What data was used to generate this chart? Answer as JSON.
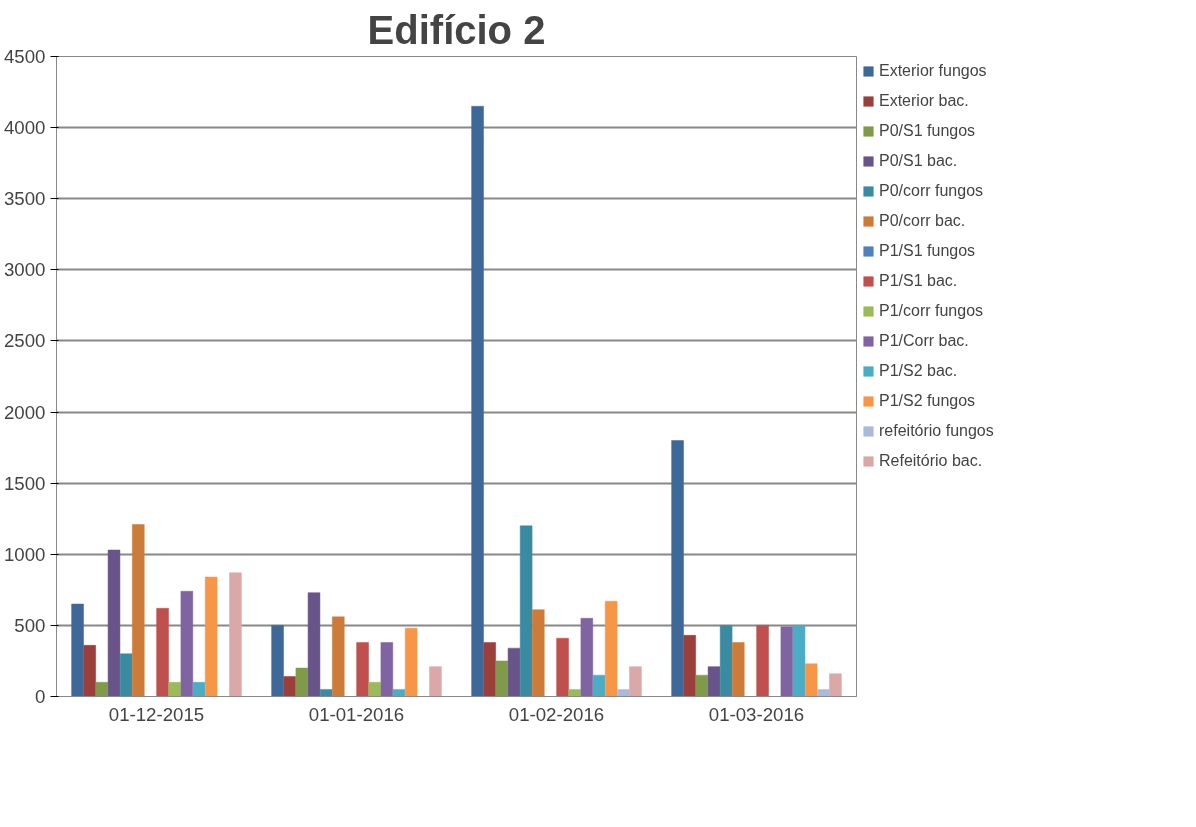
{
  "chart_data": {
    "type": "bar",
    "title": "Edifício 2",
    "categories": [
      "01-12-2015",
      "01-01-2016",
      "01-02-2016",
      "01-03-2016"
    ],
    "ylim": [
      0,
      4500
    ],
    "yticks": [
      0,
      500,
      1000,
      1500,
      2000,
      2500,
      3000,
      3500,
      4000,
      4500
    ],
    "grid": "y",
    "legend": "right",
    "series": [
      {
        "name": "Exterior fungos",
        "color": "#3e6898",
        "values": [
          650,
          500,
          4150,
          1800
        ]
      },
      {
        "name": "Exterior bac.",
        "color": "#9b3f3c",
        "values": [
          360,
          140,
          380,
          430
        ]
      },
      {
        "name": "P0/S1 fungos",
        "color": "#7f9a48",
        "values": [
          100,
          200,
          250,
          150
        ]
      },
      {
        "name": "P0/S1 bac.",
        "color": "#69548a",
        "values": [
          1030,
          730,
          340,
          210
        ]
      },
      {
        "name": "P0/corr fungos",
        "color": "#3a8ba1",
        "values": [
          300,
          50,
          1200,
          500
        ]
      },
      {
        "name": "P0/corr bac.",
        "color": "#cc7b38",
        "values": [
          1210,
          560,
          610,
          380
        ]
      },
      {
        "name": "P1/S1 fungos",
        "color": "#4f81bd",
        "values": [
          0,
          0,
          0,
          0
        ]
      },
      {
        "name": "P1/S1 bac.",
        "color": "#c0504d",
        "values": [
          620,
          380,
          410,
          500
        ]
      },
      {
        "name": "P1/corr fungos",
        "color": "#9bbb59",
        "values": [
          100,
          100,
          50,
          null
        ]
      },
      {
        "name": "P1/Corr bac.",
        "color": "#8064a2",
        "values": [
          740,
          380,
          550,
          490
        ]
      },
      {
        "name": "P1/S2 bac.",
        "color": "#4bacc6",
        "values": [
          100,
          50,
          150,
          500
        ]
      },
      {
        "name": "P1/S2 fungos",
        "color": "#f79646",
        "values": [
          840,
          480,
          670,
          230
        ]
      },
      {
        "name": "refeitório fungos",
        "color": "#aabad7",
        "values": [
          null,
          null,
          50,
          50
        ]
      },
      {
        "name": "Refeitório bac.",
        "color": "#d9a8a7",
        "values": [
          870,
          210,
          210,
          160
        ]
      }
    ]
  }
}
